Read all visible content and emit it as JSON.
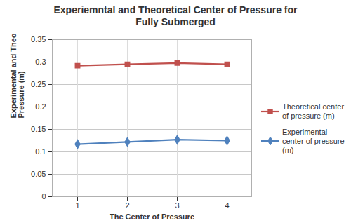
{
  "chart_data": {
    "type": "line",
    "title": "Experiemntal and Theoretical Center of Pressure for Fully Submerged",
    "x_label": "The Center of Pressure",
    "y_label": "Experimental and Theoretical Center of Pressure (m)",
    "categories": [
      "1",
      "2",
      "3",
      "4"
    ],
    "series": [
      {
        "name": "Theoretical center of pressure (m)",
        "color": "#C0504D",
        "marker": "square",
        "values": [
          0.292,
          0.295,
          0.298,
          0.295
        ]
      },
      {
        "name": "Experimental center of pressure (m)",
        "color": "#4F81BD",
        "marker": "diamond",
        "values": [
          0.117,
          0.122,
          0.127,
          0.125
        ]
      }
    ],
    "ylim": [
      0,
      0.35
    ],
    "yticks": [
      0,
      0.05,
      0.1,
      0.15,
      0.2,
      0.25,
      0.3,
      0.35
    ],
    "grid": true,
    "legend": "right"
  }
}
